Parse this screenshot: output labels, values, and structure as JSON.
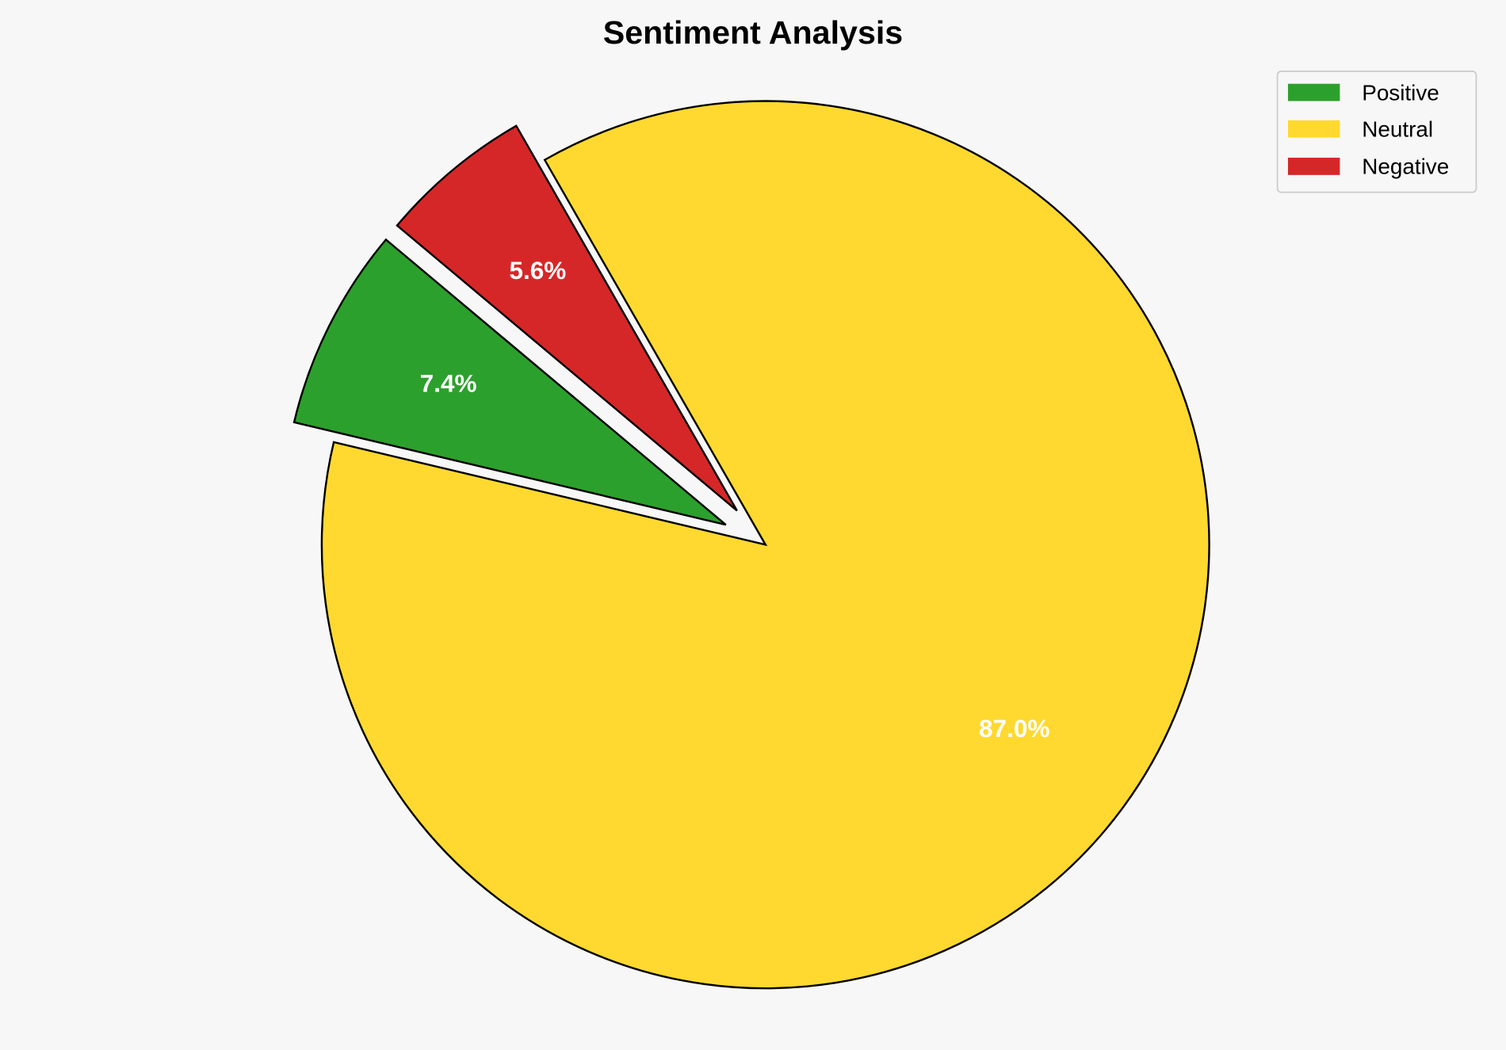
{
  "chart_data": {
    "type": "pie",
    "title": "Sentiment Analysis",
    "labels": [
      "Positive",
      "Neutral",
      "Negative"
    ],
    "values": [
      7.4,
      87.0,
      5.6
    ],
    "pct_labels": [
      "7.4%",
      "87.0%",
      "5.6%"
    ],
    "colors": [
      "#2ca02c",
      "#ffd92f",
      "#d62728"
    ],
    "explode": [
      0.1,
      0,
      0.1
    ],
    "start_angle_deg": 140,
    "legend_position": "top-right",
    "edge_color": "#000000",
    "background": "#f7f7f7"
  }
}
